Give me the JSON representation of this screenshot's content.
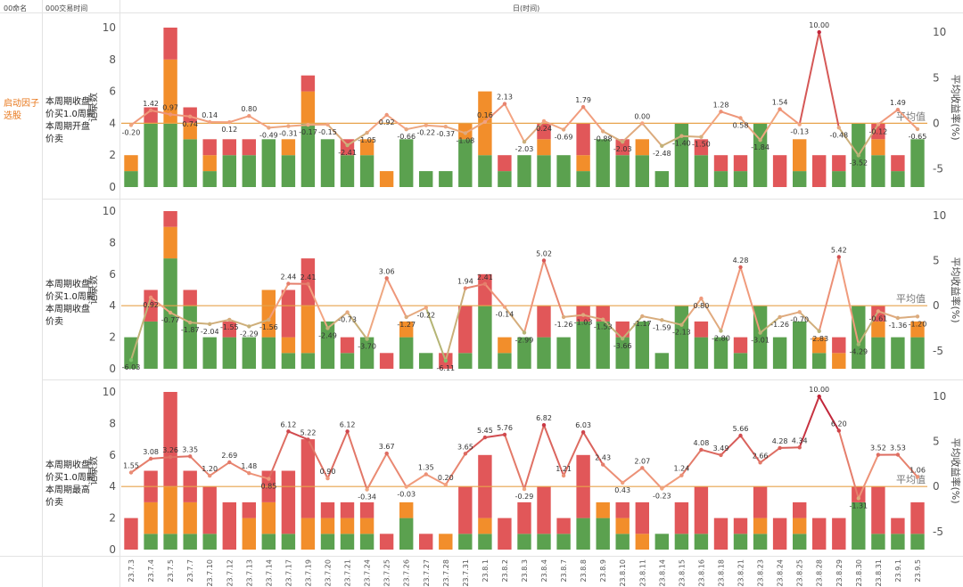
{
  "header": {
    "col1": "00命名",
    "col2": "000交易时间",
    "col3": "日(时间)"
  },
  "group_label": "启动因子选股",
  "colors": {
    "green": "#5ba14f",
    "orange": "#f28e2b",
    "red": "#e15759",
    "avg_line": "#e7a34b"
  },
  "panels": [
    {
      "label": "本周期收盘价买1.0周期本周期开盘价卖",
      "left_axis": "记录数",
      "right_axis": "平均收益率(%)",
      "avg_label": "平均值"
    },
    {
      "label": "本周期收盘价买1.0周期本周期收盘价卖",
      "left_axis": "记录数",
      "right_axis": "平均收益率(%)",
      "avg_label": "平均值"
    },
    {
      "label": "本周期收盘价买1.0周期本周期最高价卖",
      "left_axis": "记录数",
      "right_axis": "平均收益率(%)",
      "avg_label": "平均值"
    }
  ],
  "chart_data": {
    "type": "bar",
    "categories": [
      "23.7.3",
      "23.7.4",
      "23.7.5",
      "23.7.7",
      "23.7.10",
      "23.7.12",
      "23.7.13",
      "23.7.14",
      "23.7.17",
      "23.7.19",
      "23.7.20",
      "23.7.21",
      "23.7.24",
      "23.7.25",
      "23.7.26",
      "23.7.27",
      "23.7.28",
      "23.7.31",
      "23.8.1",
      "23.8.2",
      "23.8.3",
      "23.8.4",
      "23.8.7",
      "23.8.8",
      "23.8.9",
      "23.8.10",
      "23.8.11",
      "23.8.14",
      "23.8.15",
      "23.8.16",
      "23.8.18",
      "23.8.21",
      "23.8.23",
      "23.8.24",
      "23.8.25",
      "23.8.28",
      "23.8.29",
      "23.8.30",
      "23.8.31",
      "23.9.1",
      "23.9.5"
    ],
    "left_ylim": [
      0,
      10
    ],
    "left_ticks": [
      0,
      2,
      4,
      6,
      8,
      10
    ],
    "right_ylim": [
      -7,
      10.5
    ],
    "right_ticks": [
      -5,
      0,
      5,
      10
    ],
    "panels": [
      {
        "green": [
          1,
          4,
          4,
          3,
          1,
          2,
          2,
          3,
          2,
          4,
          3,
          2,
          2,
          0,
          3,
          1,
          1,
          3,
          2,
          1,
          2,
          2,
          2,
          1,
          3,
          2,
          2,
          1,
          4,
          2,
          1,
          1,
          4,
          0,
          1,
          0,
          1,
          4,
          2,
          1,
          3
        ],
        "orange": [
          1,
          0,
          4,
          1,
          1,
          0,
          0,
          0,
          1,
          2,
          0,
          0,
          1,
          1,
          0,
          0,
          0,
          1,
          4,
          0,
          0,
          1,
          0,
          1,
          0,
          0,
          1,
          0,
          0,
          0,
          0,
          0,
          0,
          0,
          2,
          0,
          0,
          0,
          1,
          0,
          0
        ],
        "red": [
          0,
          1,
          2,
          1,
          1,
          1,
          1,
          0,
          0,
          1,
          0,
          1,
          0,
          0,
          0,
          0,
          0,
          0,
          0,
          1,
          0,
          1,
          0,
          2,
          0,
          1,
          0,
          0,
          0,
          1,
          1,
          1,
          0,
          2,
          0,
          2,
          1,
          0,
          1,
          1,
          0
        ],
        "returns": [
          -0.2,
          1.42,
          0.97,
          0.74,
          0.14,
          0.12,
          0.8,
          -0.49,
          -0.31,
          -0.17,
          -0.15,
          -2.41,
          -1.05,
          0.92,
          -0.66,
          -0.22,
          -0.37,
          -1.08,
          0.16,
          2.13,
          -2.03,
          0.24,
          -0.69,
          1.79,
          -0.88,
          -2.03,
          0.0,
          -2.48,
          -1.4,
          -1.5,
          1.28,
          0.58,
          -1.84,
          1.54,
          -0.13,
          10.0,
          -0.48,
          -3.52,
          -0.12,
          1.49,
          -0.65
        ],
        "average": 0.0
      },
      {
        "green": [
          2,
          3,
          7,
          4,
          2,
          2,
          2,
          2,
          1,
          1,
          3,
          1,
          2,
          0,
          2,
          1,
          0,
          1,
          4,
          1,
          2,
          2,
          2,
          3,
          3,
          2,
          3,
          1,
          4,
          2,
          2,
          1,
          4,
          2,
          3,
          1,
          0,
          4,
          2,
          2,
          2
        ],
        "orange": [
          0,
          0,
          2,
          0,
          0,
          0,
          0,
          3,
          1,
          3,
          0,
          0,
          0,
          0,
          1,
          0,
          0,
          0,
          0,
          1,
          0,
          0,
          0,
          0,
          0,
          0,
          0,
          0,
          0,
          0,
          0,
          0,
          0,
          0,
          0,
          1,
          1,
          0,
          1,
          0,
          1
        ],
        "red": [
          0,
          2,
          1,
          1,
          0,
          1,
          0,
          0,
          3,
          3,
          0,
          1,
          0,
          1,
          0,
          0,
          1,
          3,
          2,
          0,
          0,
          2,
          0,
          1,
          1,
          1,
          0,
          0,
          0,
          1,
          0,
          1,
          0,
          0,
          0,
          0,
          1,
          0,
          1,
          0,
          0
        ],
        "returns": [
          -6.03,
          0.92,
          -0.77,
          -1.87,
          -2.04,
          -1.55,
          -2.29,
          -1.56,
          2.44,
          2.41,
          -2.49,
          -0.73,
          -3.7,
          3.06,
          -1.27,
          -0.22,
          -6.11,
          1.94,
          2.41,
          -0.14,
          -2.99,
          5.02,
          -1.26,
          -1.03,
          -1.53,
          -3.66,
          -1.17,
          -1.59,
          -2.13,
          0.8,
          -2.8,
          4.28,
          -3.01,
          -1.26,
          -0.7,
          -2.83,
          5.42,
          -4.29,
          -0.61,
          -1.36,
          -1.2
        ],
        "average": 0.0
      },
      {
        "green": [
          0,
          1,
          1,
          1,
          1,
          0,
          0,
          1,
          1,
          0,
          1,
          1,
          1,
          0,
          2,
          0,
          0,
          1,
          1,
          0,
          1,
          1,
          1,
          2,
          2,
          1,
          0,
          1,
          1,
          1,
          0,
          1,
          1,
          0,
          1,
          0,
          0,
          3,
          1,
          1,
          1
        ],
        "orange": [
          0,
          2,
          3,
          2,
          0,
          0,
          2,
          2,
          0,
          2,
          1,
          1,
          1,
          0,
          1,
          0,
          1,
          0,
          1,
          0,
          0,
          0,
          0,
          0,
          1,
          1,
          1,
          0,
          0,
          0,
          0,
          0,
          1,
          0,
          1,
          0,
          0,
          0,
          0,
          0,
          0
        ],
        "red": [
          2,
          2,
          6,
          2,
          3,
          3,
          1,
          2,
          4,
          5,
          1,
          1,
          1,
          1,
          0,
          1,
          0,
          3,
          4,
          2,
          2,
          3,
          1,
          4,
          0,
          1,
          2,
          0,
          2,
          3,
          2,
          1,
          2,
          2,
          1,
          2,
          2,
          1,
          3,
          1,
          2
        ],
        "returns": [
          1.55,
          3.08,
          3.26,
          3.35,
          1.2,
          2.69,
          1.48,
          0.85,
          6.12,
          5.22,
          0.9,
          6.12,
          -0.34,
          3.67,
          -0.03,
          1.35,
          0.2,
          3.65,
          5.45,
          5.76,
          -0.29,
          6.82,
          1.21,
          6.03,
          2.43,
          0.43,
          2.07,
          -0.23,
          1.24,
          4.08,
          3.49,
          5.66,
          2.66,
          4.28,
          4.34,
          10.0,
          6.2,
          -1.31,
          3.52,
          3.53,
          1.06
        ],
        "average": 0.0
      }
    ]
  }
}
